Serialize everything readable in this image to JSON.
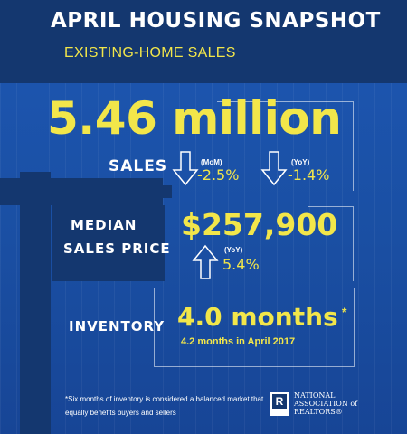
{
  "header": {
    "title": "APRIL HOUSING SNAPSHOT",
    "subtitle": "EXISTING-HOME SALES"
  },
  "sales": {
    "value": "5.46 million",
    "label": "SALES",
    "mom_tag": "(MoM)",
    "mom_change": "-2.5%",
    "yoy_tag": "(YoY)",
    "yoy_change": "-1.4%"
  },
  "median_price": {
    "label_line1": "MEDIAN",
    "label_line2": "SALES PRICE",
    "value": "$257,900",
    "yoy_tag": "(YoY)",
    "yoy_change": "5.4%"
  },
  "inventory": {
    "label": "INVENTORY",
    "value": "4.0 months",
    "asterisk": "*",
    "note": "4.2 months in April 2017"
  },
  "footnote": "*Six months of inventory is considered a balanced market that equally benefits buyers and sellers",
  "logo": {
    "mark": "R",
    "text": "NATIONAL ASSOCIATION of REALTORS®"
  },
  "colors": {
    "accent_yellow": "#f2e64a",
    "header_navy": "#14376f",
    "background_blue": "#1b4fa2"
  },
  "icons": [
    "arrow-down-icon",
    "arrow-down-icon",
    "arrow-up-icon"
  ]
}
